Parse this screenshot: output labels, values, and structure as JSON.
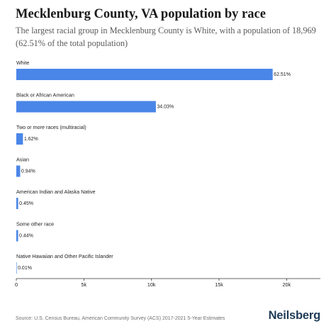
{
  "title": "Mecklenburg County, VA population by race",
  "subtitle": "The largest racial group in Mecklenburg County is White, with a population of 18,969 (62.51% of the total population)",
  "source": "Source: U.S. Census Bureau, American Community Survey (ACS) 2017-2021 5-Year Estimates",
  "brand": "Neilsberg",
  "colors": {
    "bar": "#4a86e8",
    "text": "#222222",
    "axis": "#333333"
  },
  "chart_data": {
    "type": "bar",
    "orientation": "horizontal",
    "categories": [
      "White",
      "Black or African American",
      "Two or more races (multiracial)",
      "Asian",
      "American Indian and Alaska Native",
      "Some other race",
      "Native Hawaiian and Other Pacific Islander"
    ],
    "values": [
      18969,
      10327,
      492,
      285,
      137,
      134,
      3
    ],
    "value_labels": [
      "62.51%",
      "34.03%",
      "1.62%",
      "0.94%",
      "0.45%",
      "0.44%",
      "0.01%"
    ],
    "xlim": [
      0,
      22500
    ],
    "xticks": [
      0,
      5000,
      10000,
      15000,
      20000
    ],
    "xtick_labels": [
      "0",
      "5k",
      "10k",
      "15k",
      "20k"
    ],
    "grid": false,
    "legend": "none"
  }
}
